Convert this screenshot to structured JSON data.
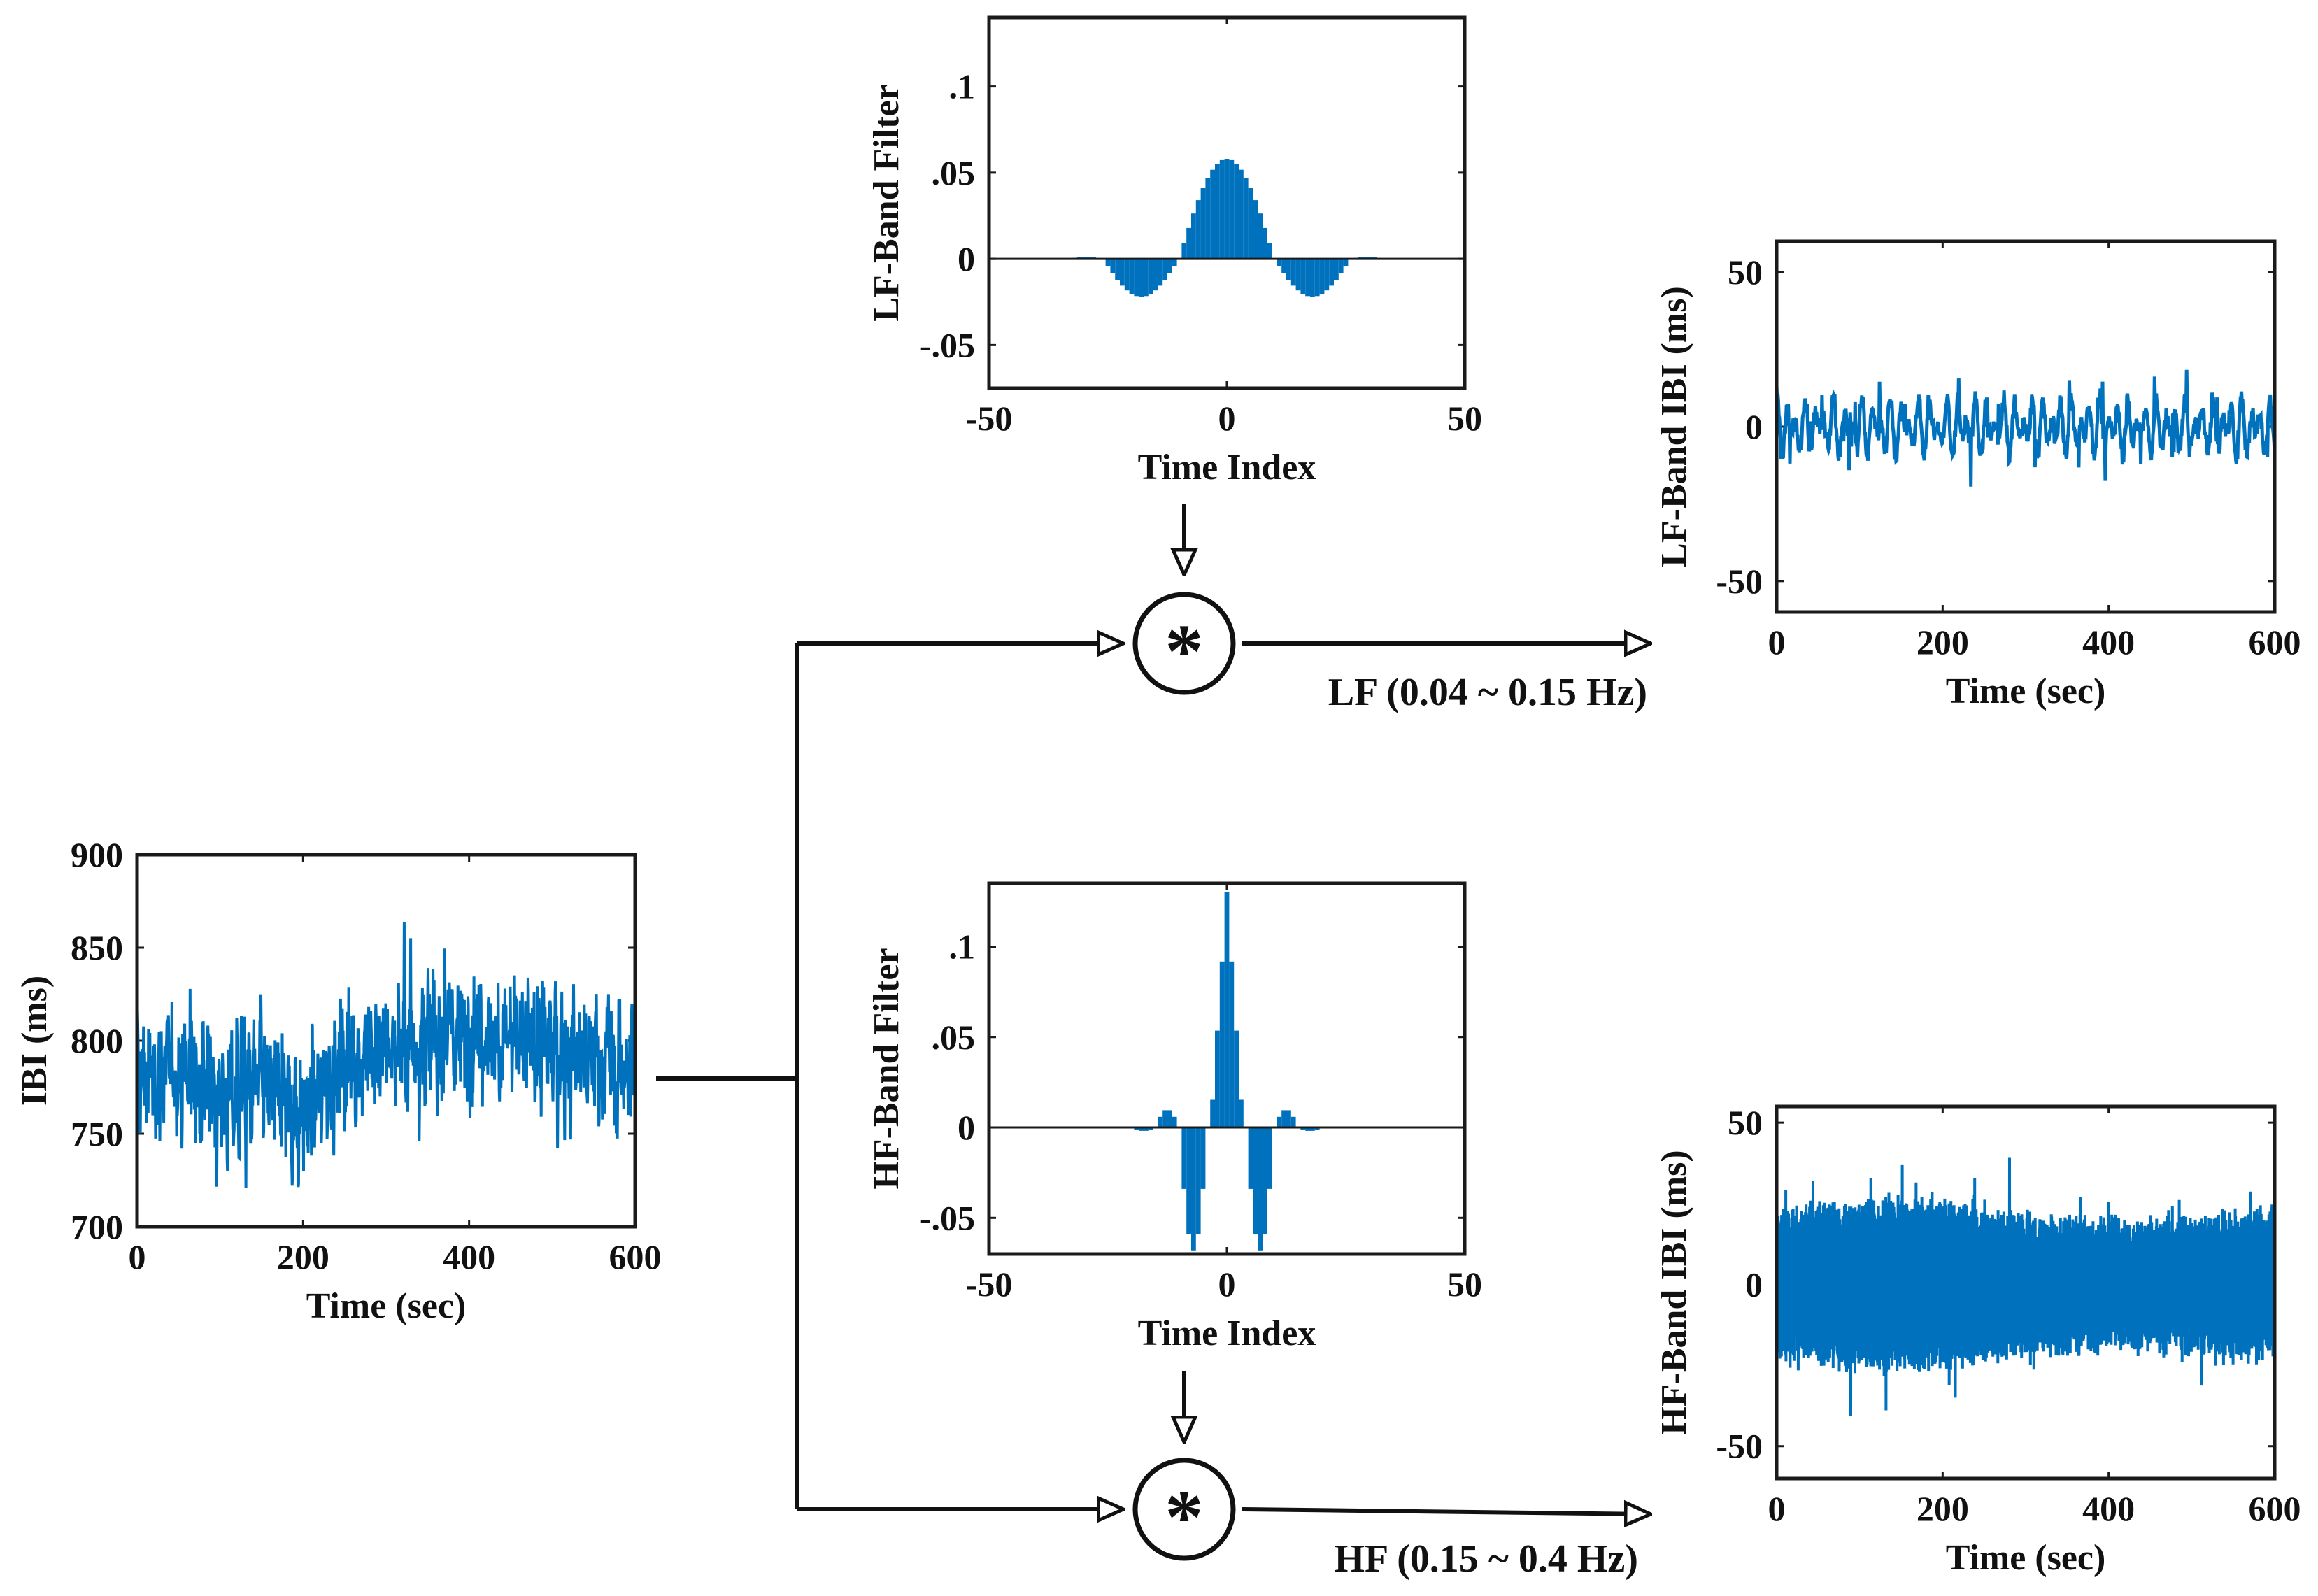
{
  "colors": {
    "signal": "#0072BD",
    "axes": "#1a1a1a",
    "background": "#ffffff"
  },
  "conv_symbol": "*",
  "bands": {
    "lf": {
      "label": "LF (0.04 ~ 0.15 Hz)"
    },
    "hf": {
      "label": "HF (0.15 ~ 0.4 Hz)"
    }
  },
  "chart_data": [
    {
      "id": "ibi",
      "type": "line",
      "xlabel": "Time (sec)",
      "ylabel": "IBI (ms)",
      "xlim": [
        0,
        600
      ],
      "ylim": [
        700,
        900
      ],
      "xticks": [
        0,
        200,
        400,
        600
      ],
      "yticks": [
        700,
        750,
        800,
        850,
        900
      ],
      "series": [
        {
          "x": [
            0,
            50,
            100,
            150,
            200,
            250,
            300,
            350,
            400,
            450,
            500,
            550,
            600
          ],
          "mean": [
            780,
            785,
            770,
            775,
            760,
            790,
            795,
            800,
            805,
            800,
            795,
            790,
            785
          ],
          "amplitude": 30,
          "min_shown": 712,
          "max_shown": 876
        }
      ]
    },
    {
      "id": "lf-filter",
      "type": "bar",
      "xlabel": "Time Index",
      "ylabel": "LF-Band Filter",
      "xlim": [
        -50,
        50
      ],
      "ylim": [
        -0.075,
        0.14
      ],
      "xticks": [
        -50,
        0,
        50
      ],
      "yticks": [
        -0.05,
        0,
        0.05,
        0.1
      ],
      "peak": 0.058,
      "side_lobe_min": -0.022,
      "side_lobe_at": 18,
      "zero_crossing": 10
    },
    {
      "id": "hf-filter",
      "type": "bar",
      "xlabel": "Time Index",
      "ylabel": "HF-Band Filter",
      "xlim": [
        -50,
        50
      ],
      "ylim": [
        -0.07,
        0.135
      ],
      "xticks": [
        -50,
        0,
        50
      ],
      "yticks": [
        -0.05,
        0,
        0.05,
        0.1
      ],
      "peak": 0.13,
      "first_lobe_min": -0.068,
      "first_lobe_at": 7,
      "second_lobe_max": 0.01,
      "second_lobe_at": 12
    },
    {
      "id": "lf-ibi",
      "type": "line",
      "xlabel": "Time (sec)",
      "ylabel": "LF-Band IBI (ms)",
      "xlim": [
        0,
        600
      ],
      "ylim": [
        -60,
        60
      ],
      "xticks": [
        0,
        200,
        400,
        600
      ],
      "yticks": [
        -50,
        0,
        50
      ],
      "series": [
        {
          "amplitude": 9,
          "min_shown": -23,
          "max_shown": 28
        }
      ]
    },
    {
      "id": "hf-ibi",
      "type": "line",
      "xlabel": "Time (sec)",
      "ylabel": "HF-Band IBI (ms)",
      "xlim": [
        0,
        600
      ],
      "ylim": [
        -60,
        55
      ],
      "xticks": [
        0,
        200,
        400,
        600
      ],
      "yticks": [
        -50,
        0,
        50
      ],
      "series": [
        {
          "amplitude": 22,
          "min_shown": -52,
          "max_shown": 48
        }
      ]
    }
  ]
}
